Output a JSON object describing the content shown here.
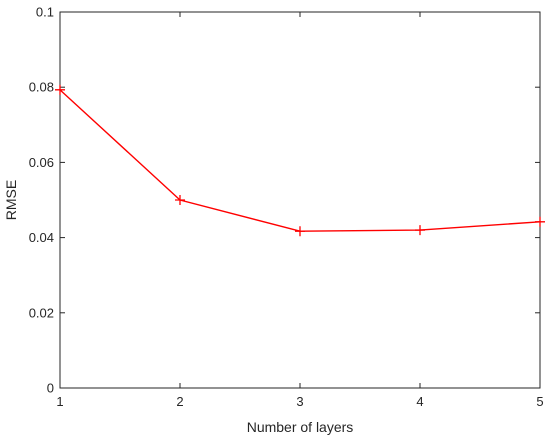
{
  "chart_data": {
    "type": "line",
    "title": "",
    "xlabel": "Number of layers",
    "ylabel": "RMSE",
    "x": [
      1,
      2,
      3,
      4,
      5
    ],
    "series": [
      {
        "values": [
          0.0793,
          0.05,
          0.0417,
          0.042,
          0.0442
        ],
        "color": "#ff0000",
        "marker": "plus"
      }
    ],
    "xlim": [
      1,
      5
    ],
    "ylim": [
      0,
      0.1
    ],
    "xticks": [
      1,
      2,
      3,
      4,
      5
    ],
    "xtick_labels": [
      "1",
      "2",
      "3",
      "4",
      "5"
    ],
    "yticks": [
      0,
      0.02,
      0.04,
      0.06,
      0.08,
      0.1
    ],
    "ytick_labels": [
      "0",
      "0.02",
      "0.04",
      "0.06",
      "0.08",
      "0.1"
    ],
    "grid": false,
    "legend": "none",
    "axis_color": "#262626",
    "background": "#ffffff"
  }
}
